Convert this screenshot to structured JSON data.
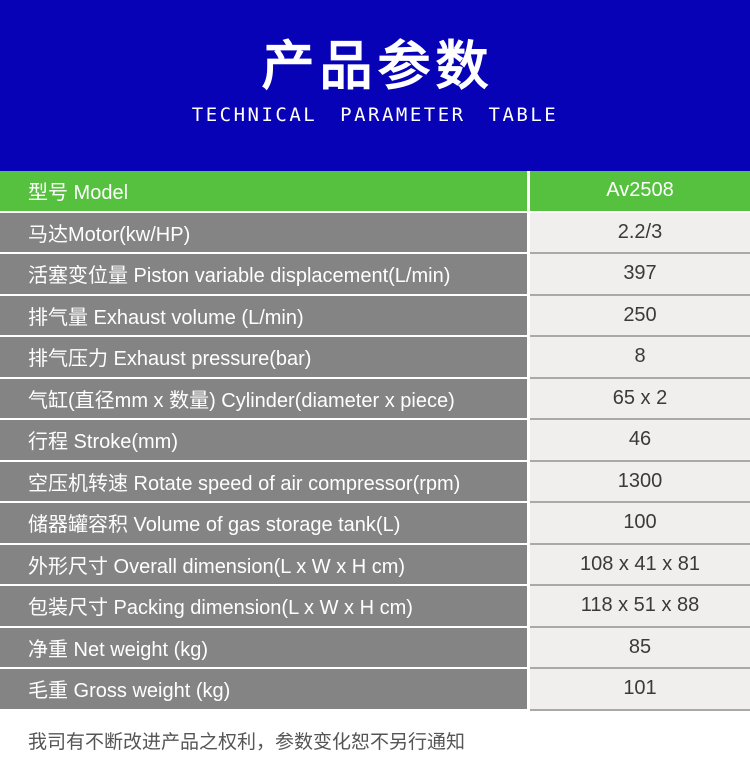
{
  "header": {
    "title": "产品参数",
    "subtitle": "TECHNICAL PARAMETER TABLE"
  },
  "table": {
    "rows": [
      {
        "label": "型号 Model",
        "value": "Av2508",
        "highlight": true
      },
      {
        "label": "马达Motor(kw/HP)",
        "value": "2.2/3"
      },
      {
        "label": "活塞变位量 Piston variable displacement(L/min)",
        "value": "397"
      },
      {
        "label": "排气量 Exhaust volume (L/min)",
        "value": "250"
      },
      {
        "label": "排气压力 Exhaust pressure(bar)",
        "value": "8"
      },
      {
        "label": "气缸(直径mm x 数量) Cylinder(diameter x piece)",
        "value": "65 x 2"
      },
      {
        "label": "行程 Stroke(mm)",
        "value": "46"
      },
      {
        "label": "空压机转速 Rotate speed of air compressor(rpm)",
        "value": "1300"
      },
      {
        "label": "储器罐容积 Volume of gas storage tank(L)",
        "value": "100"
      },
      {
        "label": "外形尺寸 Overall dimension(L x W x H cm)",
        "value": "108 x 41 x 81"
      },
      {
        "label": "包装尺寸 Packing dimension(L x W x H cm)",
        "value": "118 x 51 x 88"
      },
      {
        "label": "净重 Net weight (kg)",
        "value": "85"
      },
      {
        "label": "毛重 Gross weight (kg)",
        "value": "101"
      }
    ]
  },
  "footer": {
    "note": "我司有不断改进产品之权利，参数变化恕不另行通知"
  },
  "colors": {
    "header_bg": "#0802b6",
    "highlight_green": "#55c13e",
    "row_gray": "#848484",
    "value_bg": "#f0efed",
    "value_divider": "#a9a9a9"
  }
}
